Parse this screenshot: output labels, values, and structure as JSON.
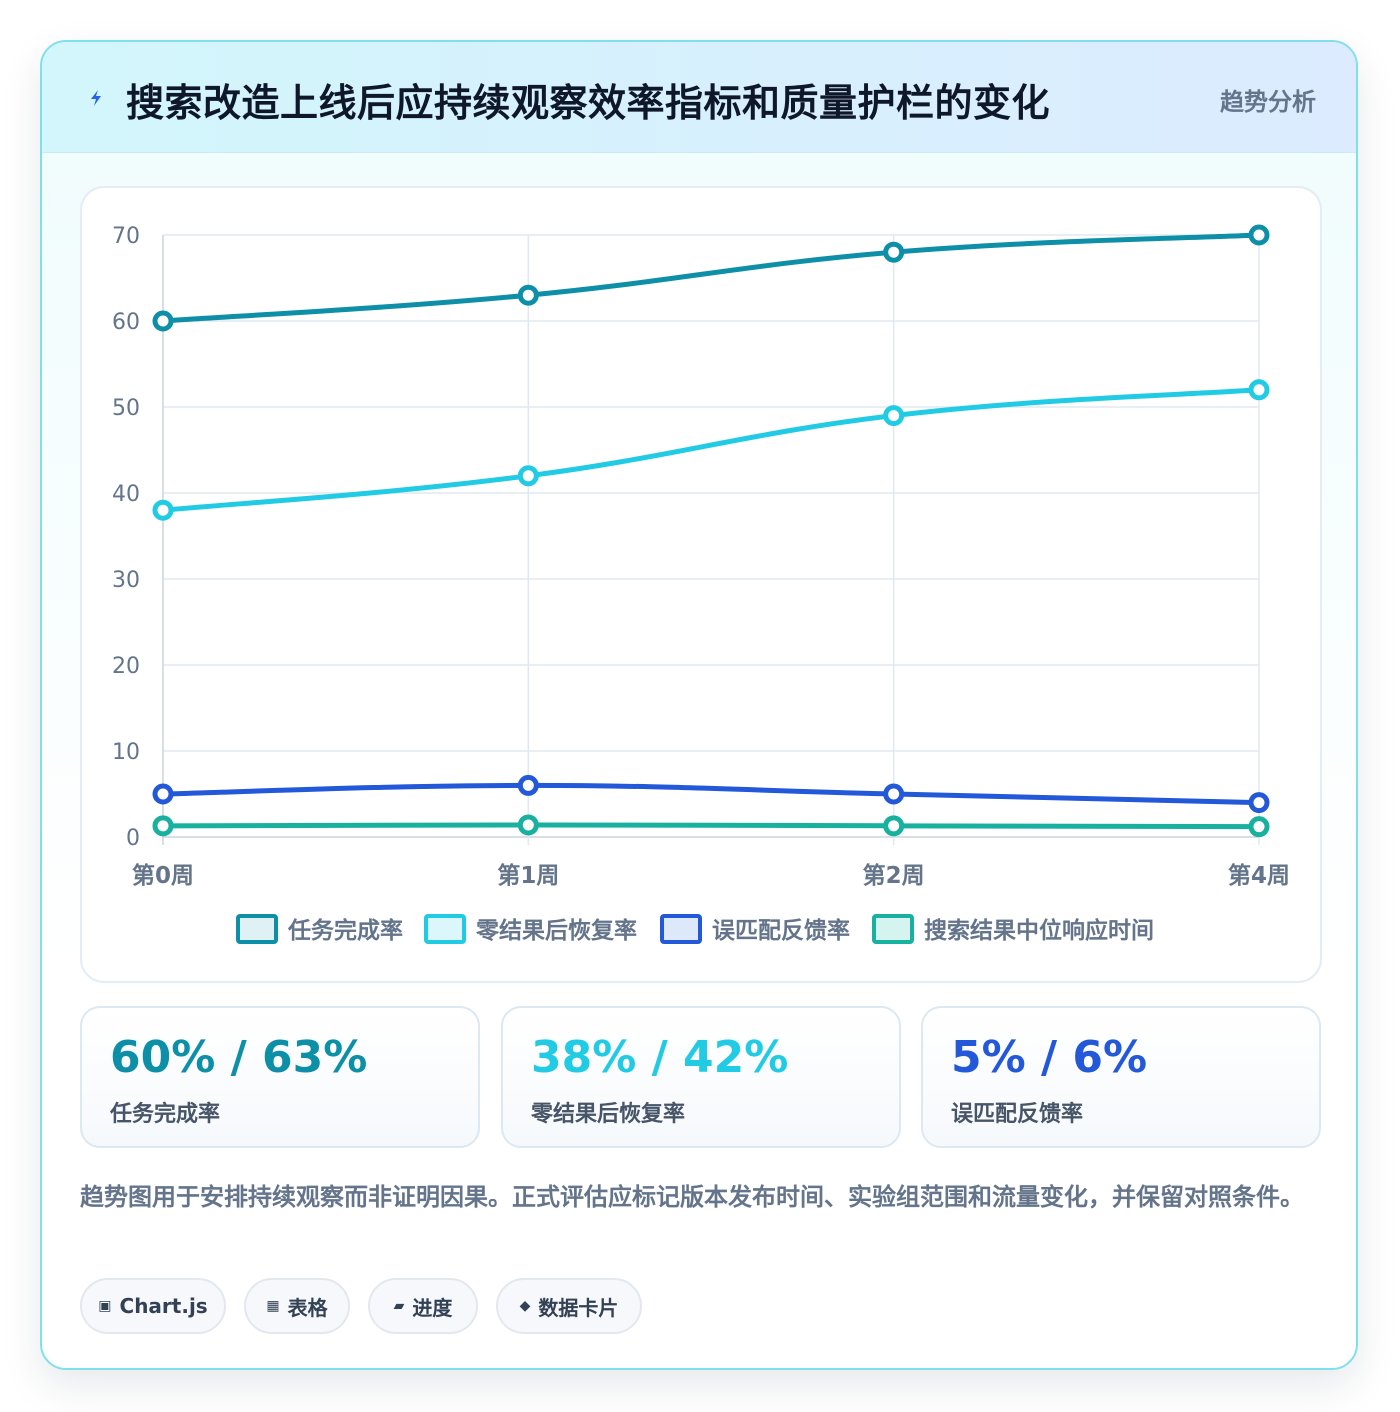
{
  "header": {
    "title": "搜索改造上线后应持续观察效率指标和质量护栏的变化",
    "tag": "趋势分析",
    "icon": "lightning-icon"
  },
  "chart_data": {
    "type": "line",
    "categories": [
      "第0周",
      "第1周",
      "第2周",
      "第4周"
    ],
    "ylim": [
      0,
      70
    ],
    "yticks": [
      0,
      10,
      20,
      30,
      40,
      50,
      60,
      70
    ],
    "grid": true,
    "legend_position": "bottom",
    "series": [
      {
        "name": "任务完成率",
        "values": [
          60,
          63,
          68,
          70
        ],
        "color": "#0e8fa8"
      },
      {
        "name": "零结果后恢复率",
        "values": [
          38,
          42,
          49,
          52
        ],
        "color": "#22cbe4"
      },
      {
        "name": "误匹配反馈率",
        "values": [
          5,
          6,
          5,
          4
        ],
        "color": "#2358d8"
      },
      {
        "name": "搜索结果中位响应时间",
        "values": [
          1.3,
          1.4,
          1.3,
          1.2
        ],
        "color": "#18b09e"
      }
    ]
  },
  "stats": [
    {
      "value": "60% / 63%",
      "label": "任务完成率",
      "color": "#0e8fa8"
    },
    {
      "value": "38% / 42%",
      "label": "零结果后恢复率",
      "color": "#22cbe4"
    },
    {
      "value": "5% / 6%",
      "label": "误匹配反馈率",
      "color": "#2358d8"
    }
  ],
  "note": "趋势图用于安排持续观察而非证明因果。正式评估应标记版本发布时间、实验组范围和流量变化，并保留对照条件。",
  "chips": [
    {
      "icon": "▣",
      "label": "Chart.js"
    },
    {
      "icon": "▦",
      "label": "表格"
    },
    {
      "icon": "▰",
      "label": "进度"
    },
    {
      "icon": "◆",
      "label": "数据卡片"
    }
  ]
}
